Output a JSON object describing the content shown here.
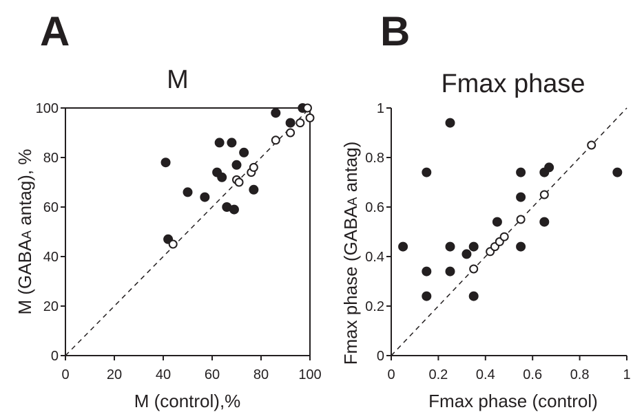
{
  "chart_data": [
    {
      "panel": "A",
      "type": "scatter",
      "title": "M",
      "xlabel": "M (control),%",
      "ylabel": "M (GABAA antag), %",
      "ylabel_sub": "A",
      "ylabel_pre": "M (GABA",
      "ylabel_post": " antag), %",
      "xlim": [
        0,
        100
      ],
      "ylim": [
        0,
        100
      ],
      "xticks": [
        "0",
        "20",
        "40",
        "60",
        "80",
        "100"
      ],
      "yticks": [
        "0",
        "20",
        "40",
        "60",
        "80",
        "100"
      ],
      "identity_line": true,
      "series": [
        {
          "name": "filled",
          "marker": "filled",
          "points": [
            [
              41,
              78
            ],
            [
              42,
              47
            ],
            [
              50,
              66
            ],
            [
              57,
              64
            ],
            [
              62,
              74
            ],
            [
              63,
              86
            ],
            [
              64,
              72
            ],
            [
              66,
              60
            ],
            [
              68,
              86
            ],
            [
              69,
              59
            ],
            [
              70,
              77
            ],
            [
              73,
              82
            ],
            [
              77,
              67
            ],
            [
              86,
              98
            ],
            [
              92,
              94
            ],
            [
              97,
              100
            ]
          ]
        },
        {
          "name": "open",
          "marker": "open",
          "points": [
            [
              44,
              45
            ],
            [
              70,
              71
            ],
            [
              71,
              70
            ],
            [
              76,
              74
            ],
            [
              77,
              76
            ],
            [
              86,
              87
            ],
            [
              92,
              90
            ],
            [
              96,
              94
            ],
            [
              99,
              100
            ],
            [
              100,
              96
            ]
          ]
        }
      ]
    },
    {
      "panel": "B",
      "type": "scatter",
      "title": "Fmax phase",
      "xlabel": "Fmax phase (control)",
      "ylabel": "Fmax phase (GABAA antag)",
      "ylabel_sub": "A",
      "ylabel_pre": "Fmax phase (GABA",
      "ylabel_post": " antag)",
      "xlim": [
        0,
        1
      ],
      "ylim": [
        0,
        1
      ],
      "xticks": [
        "0",
        "0.2",
        "0.4",
        "0.6",
        "0.8",
        "1"
      ],
      "yticks": [
        "0",
        "0.2",
        "0.4",
        "0.6",
        "0.8",
        "1"
      ],
      "identity_line": true,
      "series": [
        {
          "name": "filled",
          "marker": "filled",
          "points": [
            [
              0.05,
              0.44
            ],
            [
              0.15,
              0.74
            ],
            [
              0.15,
              0.34
            ],
            [
              0.15,
              0.24
            ],
            [
              0.25,
              0.94
            ],
            [
              0.25,
              0.44
            ],
            [
              0.25,
              0.34
            ],
            [
              0.32,
              0.41
            ],
            [
              0.35,
              0.44
            ],
            [
              0.35,
              0.24
            ],
            [
              0.45,
              0.54
            ],
            [
              0.55,
              0.74
            ],
            [
              0.55,
              0.64
            ],
            [
              0.55,
              0.44
            ],
            [
              0.65,
              0.74
            ],
            [
              0.65,
              0.54
            ],
            [
              0.67,
              0.76
            ],
            [
              0.96,
              0.74
            ]
          ]
        },
        {
          "name": "open",
          "marker": "open",
          "points": [
            [
              0.35,
              0.35
            ],
            [
              0.42,
              0.42
            ],
            [
              0.44,
              0.44
            ],
            [
              0.46,
              0.46
            ],
            [
              0.48,
              0.48
            ],
            [
              0.55,
              0.55
            ],
            [
              0.65,
              0.65
            ],
            [
              0.85,
              0.85
            ]
          ]
        }
      ]
    }
  ]
}
